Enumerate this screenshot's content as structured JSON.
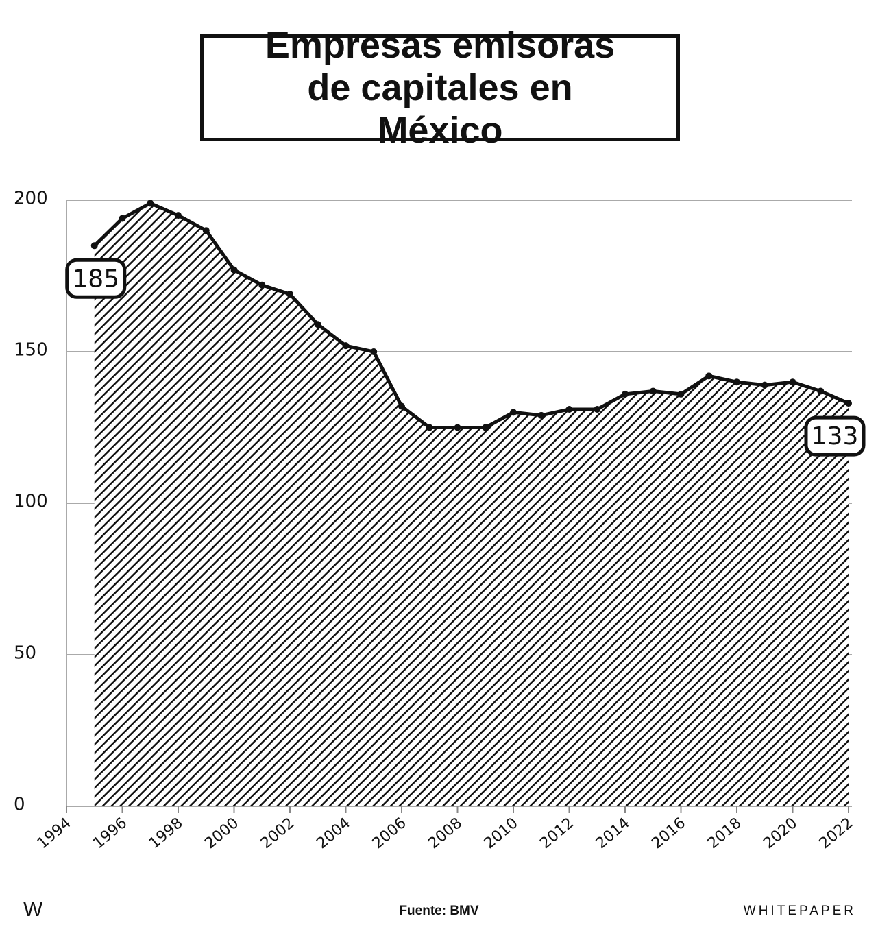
{
  "chart_data": {
    "type": "area",
    "title": "Empresas emisoras de capitales en México",
    "x": [
      1995,
      1996,
      1997,
      1998,
      1999,
      2000,
      2001,
      2002,
      2003,
      2004,
      2005,
      2006,
      2007,
      2008,
      2009,
      2010,
      2011,
      2012,
      2013,
      2014,
      2015,
      2016,
      2017,
      2018,
      2019,
      2020,
      2021,
      2022
    ],
    "values": [
      185,
      194,
      199,
      195,
      190,
      177,
      172,
      169,
      159,
      152,
      150,
      132,
      125,
      125,
      125,
      130,
      129,
      131,
      131,
      136,
      137,
      136,
      142,
      140,
      139,
      140,
      137,
      133
    ],
    "value_labels": [
      "185",
      null,
      null,
      null,
      null,
      null,
      null,
      null,
      null,
      null,
      null,
      null,
      null,
      null,
      null,
      null,
      null,
      null,
      null,
      null,
      null,
      null,
      null,
      null,
      null,
      null,
      null,
      "133"
    ],
    "color": "#111111",
    "xlim": [
      1994,
      2022
    ],
    "xticks": [
      1994,
      1996,
      1998,
      2000,
      2002,
      2004,
      2006,
      2008,
      2010,
      2012,
      2014,
      2016,
      2018,
      2020,
      2022
    ],
    "ylim": [
      0,
      200
    ],
    "yticks": [
      0,
      50,
      100,
      150,
      200
    ],
    "grid": true,
    "source": "Fuente: BMV"
  },
  "logo": "W",
  "brand": "WHITEPAPER"
}
